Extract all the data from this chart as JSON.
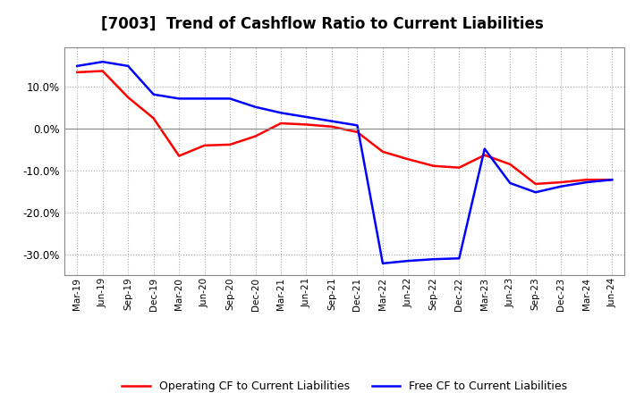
{
  "title": "[7003]  Trend of Cashflow Ratio to Current Liabilities",
  "x_labels": [
    "Mar-19",
    "Jun-19",
    "Sep-19",
    "Dec-19",
    "Mar-20",
    "Jun-20",
    "Sep-20",
    "Dec-20",
    "Mar-21",
    "Jun-21",
    "Sep-21",
    "Dec-21",
    "Mar-22",
    "Jun-22",
    "Sep-22",
    "Dec-22",
    "Mar-23",
    "Jun-23",
    "Sep-23",
    "Dec-23",
    "Mar-24",
    "Jun-24"
  ],
  "operating_cf": [
    0.135,
    0.138,
    0.075,
    0.025,
    -0.065,
    -0.04,
    -0.038,
    -0.018,
    0.013,
    0.01,
    0.005,
    -0.008,
    -0.055,
    -0.073,
    -0.089,
    -0.093,
    -0.063,
    -0.085,
    -0.132,
    -0.128,
    -0.122,
    -0.122
  ],
  "free_cf": [
    0.15,
    0.16,
    0.15,
    0.082,
    0.072,
    0.072,
    0.072,
    0.052,
    0.038,
    0.028,
    0.018,
    0.008,
    -0.322,
    -0.316,
    -0.312,
    -0.31,
    -0.048,
    -0.13,
    -0.152,
    -0.138,
    -0.128,
    -0.122
  ],
  "operating_cf_color": "#ff0000",
  "free_cf_color": "#0000ff",
  "ylim": [
    -0.35,
    0.195
  ],
  "yticks": [
    -0.3,
    -0.2,
    -0.1,
    0.0,
    0.1
  ],
  "background_color": "#ffffff",
  "plot_bg_color": "#ffffff",
  "grid_color": "#aaaaaa",
  "legend_op": "Operating CF to Current Liabilities",
  "legend_free": "Free CF to Current Liabilities"
}
